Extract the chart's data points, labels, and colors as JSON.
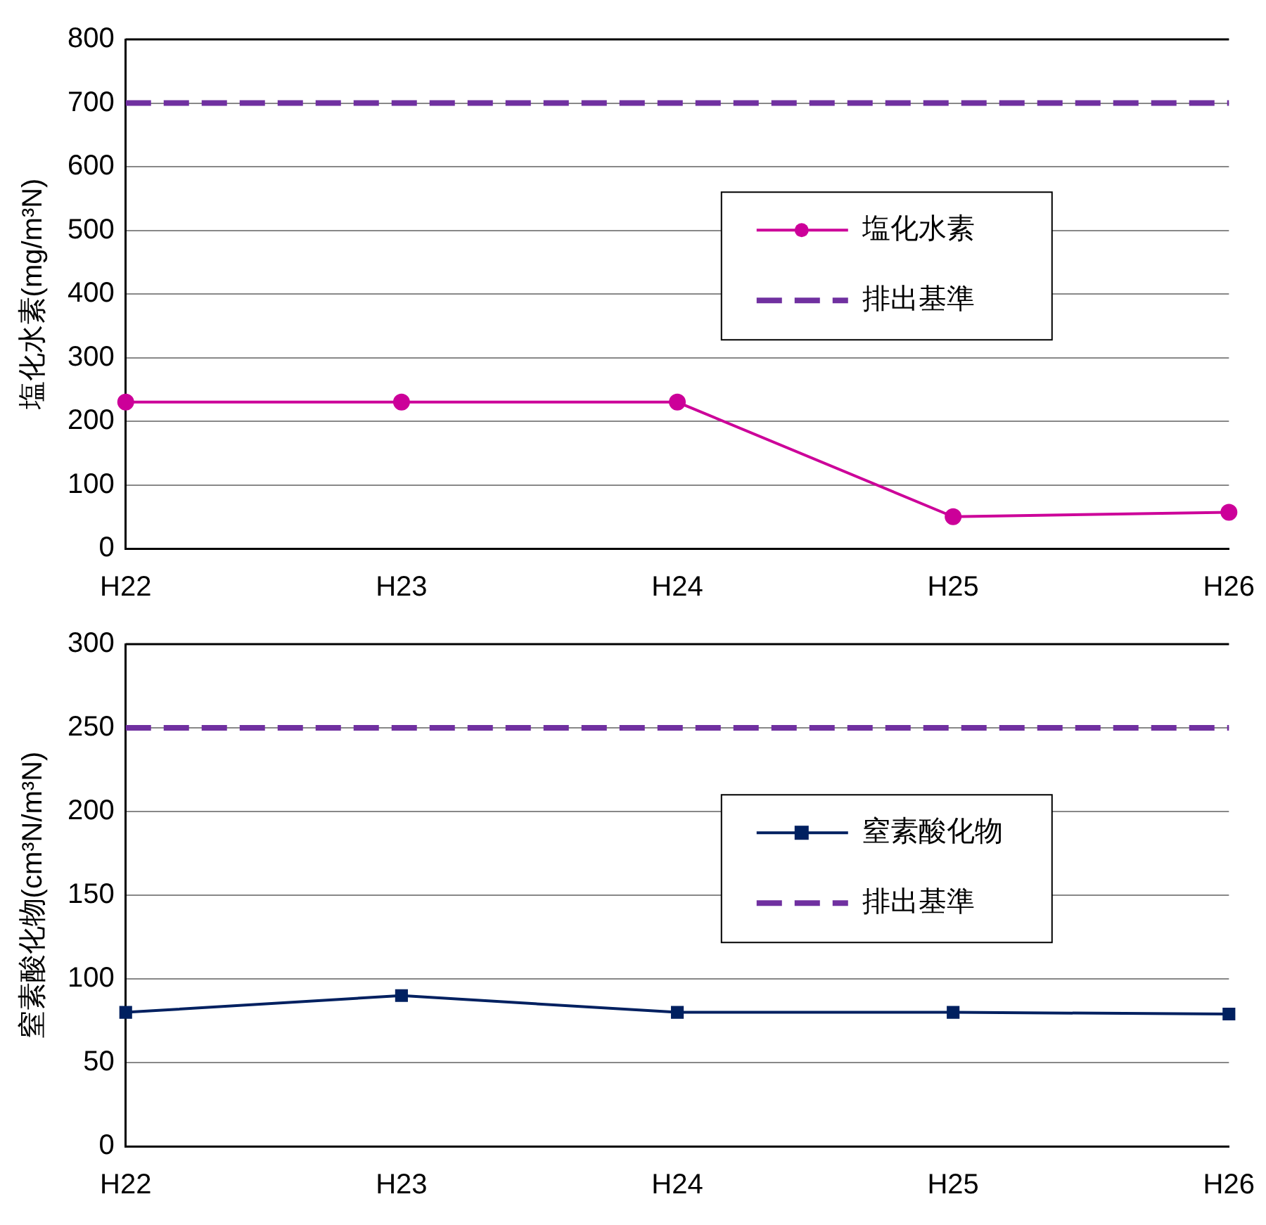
{
  "chart_data": [
    {
      "type": "line",
      "ylabel": "塩化水素(mg/m³N)",
      "categories": [
        "H22",
        "H23",
        "H24",
        "H25",
        "H26"
      ],
      "ylim": [
        0,
        800
      ],
      "yticks": [
        0,
        100,
        200,
        300,
        400,
        500,
        600,
        700,
        800
      ],
      "grid": "y",
      "legend": "right",
      "series": [
        {
          "name": "塩化水素",
          "color": "#cc0099",
          "values": [
            230,
            230,
            230,
            50,
            57
          ],
          "marker": "circle",
          "line_style": "solid"
        },
        {
          "name": "排出基準",
          "color": "#7030a0",
          "values": [
            700,
            700,
            700,
            700,
            700
          ],
          "marker": "none",
          "line_style": "dashed"
        }
      ]
    },
    {
      "type": "line",
      "ylabel": "窒素酸化物(cm³N/m³N)",
      "categories": [
        "H22",
        "H23",
        "H24",
        "H25",
        "H26"
      ],
      "ylim": [
        0,
        300
      ],
      "yticks": [
        0,
        50,
        100,
        150,
        200,
        250,
        300
      ],
      "grid": "y",
      "legend": "right",
      "series": [
        {
          "name": "窒素酸化物",
          "color": "#002060",
          "values": [
            80,
            90,
            80,
            80,
            79
          ],
          "marker": "square",
          "line_style": "solid"
        },
        {
          "name": "排出基準",
          "color": "#7030a0",
          "values": [
            250,
            250,
            250,
            250,
            250
          ],
          "marker": "none",
          "line_style": "dashed"
        }
      ]
    }
  ]
}
